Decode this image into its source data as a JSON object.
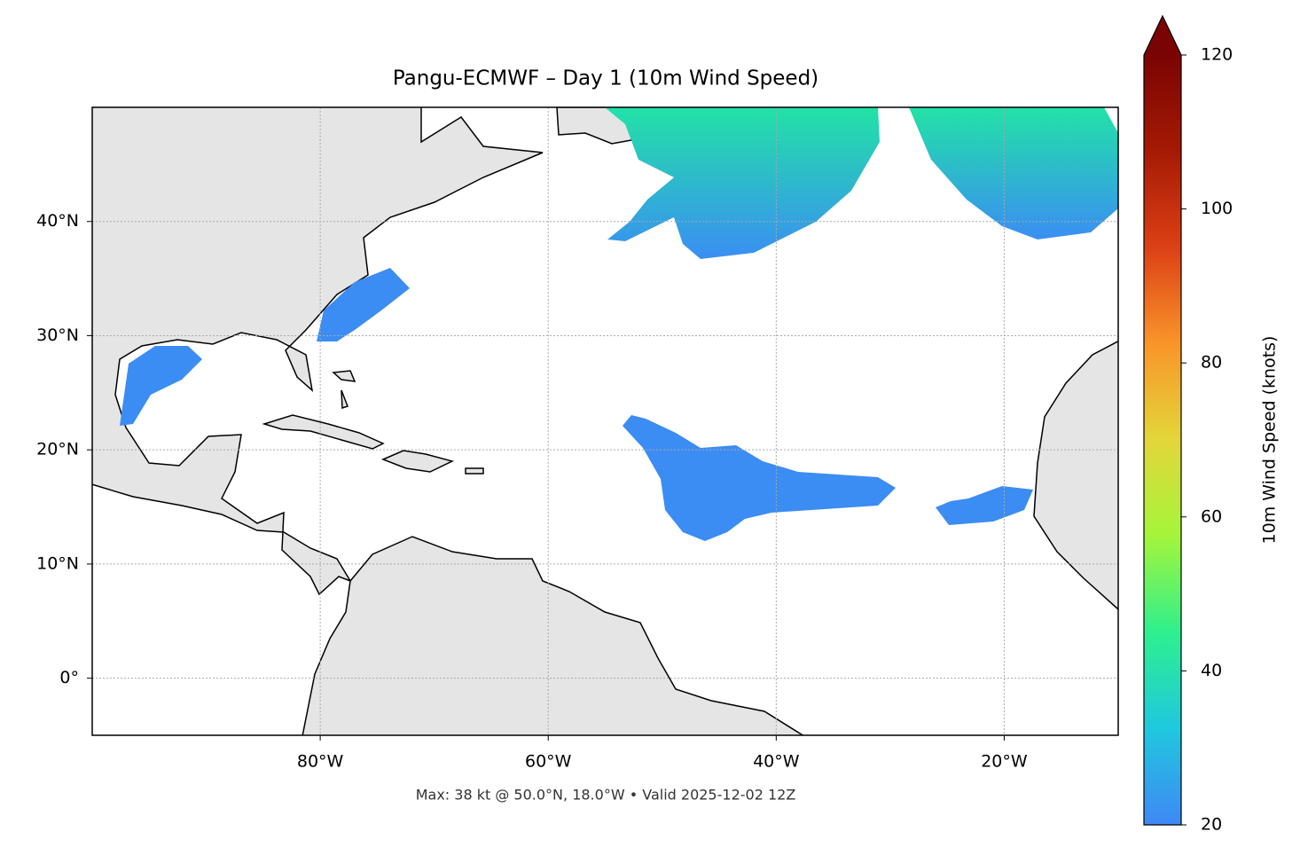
{
  "chart_data": {
    "type": "map",
    "title": "Pangu-ECMWF – Day 1 (10m Wind Speed)",
    "footnote": "Max: 38 kt @ 50.0°N, 18.0°W • Valid 2025-12-02 12Z",
    "xlim": [
      -100,
      -10
    ],
    "ylim": [
      -5,
      50
    ],
    "xticks": [
      {
        "value": -80,
        "label": "80°W"
      },
      {
        "value": -60,
        "label": "60°W"
      },
      {
        "value": -40,
        "label": "40°W"
      },
      {
        "value": -20,
        "label": "20°W"
      }
    ],
    "yticks": [
      {
        "value": 0,
        "label": "0°"
      },
      {
        "value": 10,
        "label": "10°N"
      },
      {
        "value": 20,
        "label": "20°N"
      },
      {
        "value": 30,
        "label": "30°N"
      },
      {
        "value": 40,
        "label": "40°N"
      }
    ],
    "grid": true,
    "colorbar": {
      "label": "10m Wind Speed (knots)",
      "lim": [
        20,
        120
      ],
      "ticks": [
        20,
        40,
        60,
        80,
        100,
        120
      ],
      "colors": [
        "#3f88f5",
        "#1fc8de",
        "#2ef08e",
        "#a4f53a",
        "#e3d63a",
        "#f9952a",
        "#dc4016",
        "#a51a05",
        "#7a0403"
      ]
    }
  }
}
